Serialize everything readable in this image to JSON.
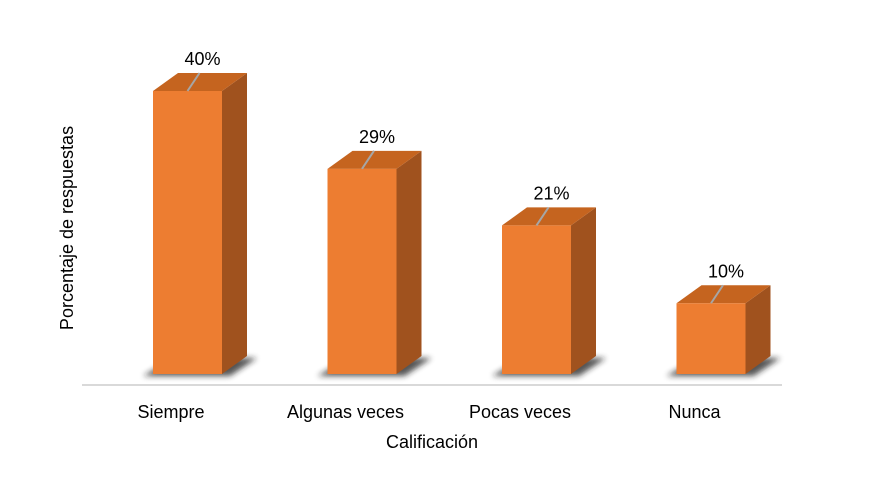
{
  "chart_data": {
    "type": "bar",
    "style": "3d-column",
    "title": "",
    "xlabel": "Calificación",
    "ylabel": "Porcentaje de respuestas",
    "categories": [
      "Siempre",
      "Algunas veces",
      "Pocas veces",
      "Nunca"
    ],
    "values": [
      40,
      29,
      21,
      10
    ],
    "data_labels": [
      "40%",
      "29%",
      "21%",
      "10%"
    ],
    "ylim": [
      0,
      40
    ],
    "grid": false,
    "legend": "none",
    "colors": {
      "bar_front": "#ED7D31",
      "bar_side": "#A0521E",
      "bar_top": "#C5641F",
      "shadow": "#1a1a1a",
      "axis_line": "#D9D9D9",
      "leader_line": "#A6A6A6"
    }
  }
}
